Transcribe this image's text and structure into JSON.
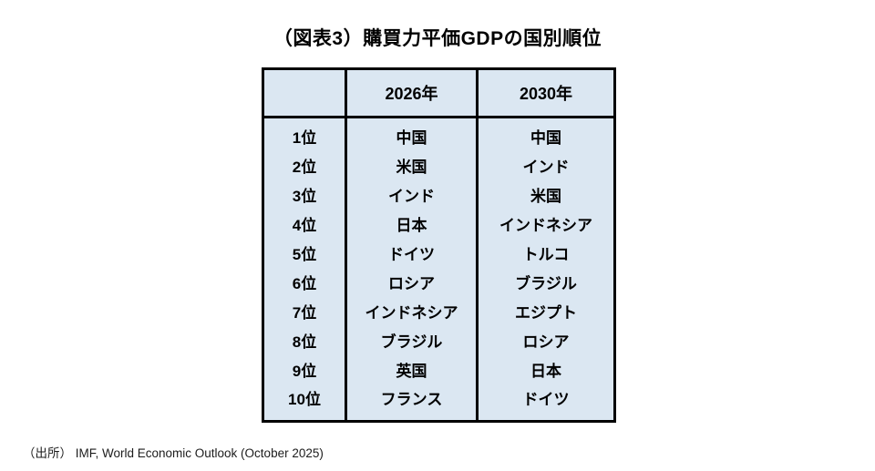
{
  "page": {
    "title": "（図表3）購買力平価GDPの国別順位",
    "source": "（出所） IMF, World Economic Outlook (October 2025)"
  },
  "chart_data": {
    "type": "table",
    "title": "（図表3）購買力平価GDPの国別順位",
    "columns": [
      "",
      "2026年",
      "2030年"
    ],
    "rows": [
      {
        "rank": "1位",
        "y2026": "中国",
        "y2030": "中国"
      },
      {
        "rank": "2位",
        "y2026": "米国",
        "y2030": "インド"
      },
      {
        "rank": "3位",
        "y2026": "インド",
        "y2030": "米国"
      },
      {
        "rank": "4位",
        "y2026": "日本",
        "y2030": "インドネシア"
      },
      {
        "rank": "5位",
        "y2026": "ドイツ",
        "y2030": "トルコ"
      },
      {
        "rank": "6位",
        "y2026": "ロシア",
        "y2030": "ブラジル"
      },
      {
        "rank": "7位",
        "y2026": "インドネシア",
        "y2030": "エジプト"
      },
      {
        "rank": "8位",
        "y2026": "ブラジル",
        "y2030": "ロシア"
      },
      {
        "rank": "9位",
        "y2026": "英国",
        "y2030": "日本"
      },
      {
        "rank": "10位",
        "y2026": "フランス",
        "y2030": "ドイツ"
      }
    ],
    "source": "（出所） IMF, World Economic Outlook (October 2025)",
    "colors": {
      "cell_background": "#dbe7f2",
      "border": "#000000",
      "text": "#000000"
    },
    "legend_position": "none",
    "grid": "off"
  }
}
